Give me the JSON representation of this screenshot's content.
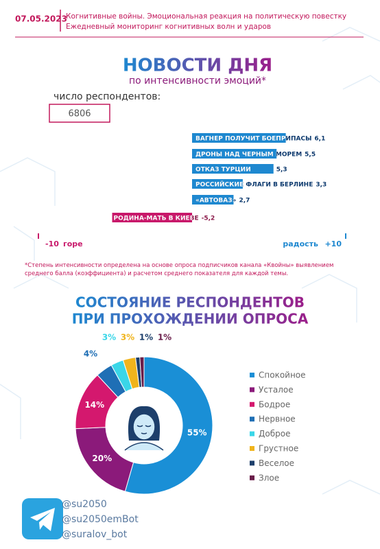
{
  "header": {
    "date": "07.05.2023",
    "title": "Когнитивные войны. Эмоциональная реакция на политическую повестку",
    "subtitle": "Ежедневный мониторинг когнитивных волн и ударов"
  },
  "chart_data": [
    {
      "type": "bar",
      "orientation": "horizontal",
      "title": "НОВОСТИ ДНЯ",
      "subtitle": "по интенсивности эмоций*",
      "respondents_label": "число респондентов:",
      "respondents": 6806,
      "categories": [
        "ВАГНЕР ПОЛУЧИТ БОЕПРИПАСЫ",
        "ДРОНЫ НАД ЧЕРНЫМ МОРЕМ",
        "ОТКАЗ ТУРЦИИ",
        "РОССИЙСКИЕ ФЛАГИ В БЕРЛИНЕ",
        "«АВТОВАЗ»",
        "РОДИНА-МАТЬ В КИЕВЕ"
      ],
      "values": [
        6.1,
        5.5,
        5.3,
        3.3,
        2.7,
        -5.2
      ],
      "value_labels": [
        "6,1",
        "5,5",
        "5,3",
        "3,3",
        "2,7",
        "-5,2"
      ],
      "color": "#1e88d0",
      "negative_color": "#c8186a",
      "xlim": [
        -10,
        10
      ],
      "xticks": [
        -10,
        {
          "value": 10,
          "label": "+10"
        }
      ],
      "annotations": [
        "горе",
        "радость"
      ],
      "footnote": "*Степень интенсивности определена на основе опроса подписчиков канала «Квойны» выявлением среднего балла (коэффициента) и расчетом среднего показателя для каждой темы."
    },
    {
      "type": "pie",
      "title": [
        "СОСТОЯНИЕ РЕСПОНДЕНТОВ",
        "ПРИ ПРОХОЖДЕНИИ ОПРОСА"
      ],
      "categories": [
        "Спокойное",
        "Усталое",
        "Бодрое",
        "Нервное",
        "Доброе",
        "Грустное",
        "Веселое",
        "Злое"
      ],
      "values": [
        55,
        20,
        14,
        4,
        3,
        3,
        1,
        1
      ],
      "value_labels": [
        "55%",
        "20%",
        "14%",
        "4%",
        "3%",
        "3%",
        "1%",
        "1%"
      ],
      "colors": [
        "#1a8fd6",
        "#8b1a7a",
        "#d4186e",
        "#1f6fb5",
        "#3ad6e8",
        "#f0b41c",
        "#1d3f6b",
        "#6a1d4a"
      ],
      "legend": "right"
    }
  ],
  "footer": {
    "handles": [
      "@su2050",
      "@su2050emBot",
      "@suralov_bot"
    ]
  }
}
